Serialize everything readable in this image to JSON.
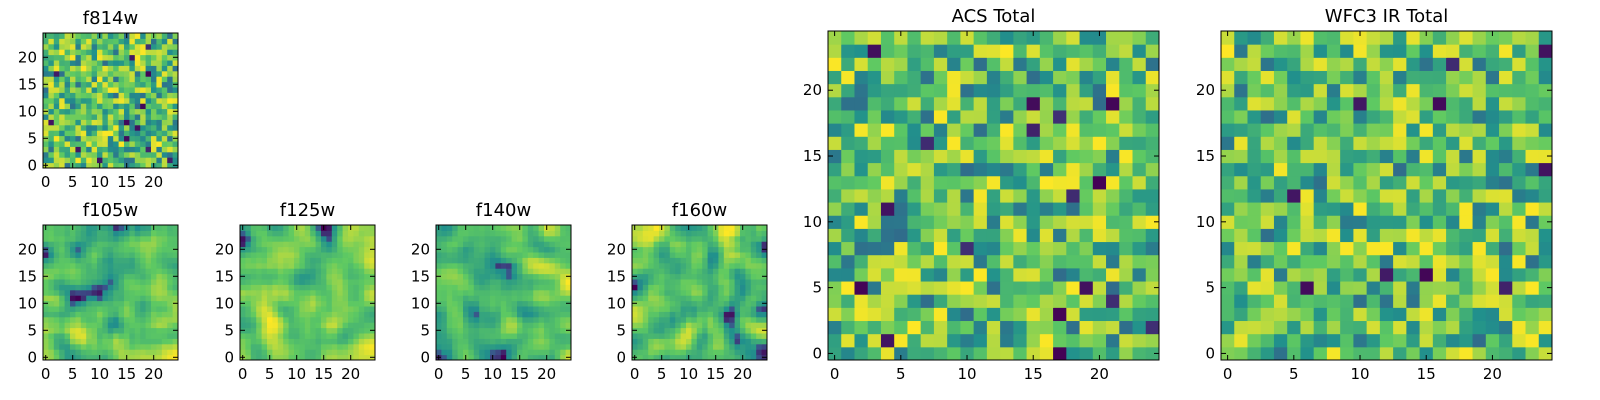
{
  "figure": {
    "type": "heatmap",
    "colormap": "viridis",
    "colormap_colors": [
      "#440154",
      "#3b528b",
      "#21918c",
      "#5ec962",
      "#fde725"
    ]
  },
  "chart_data": [
    {
      "type": "heatmap",
      "title": "f814w",
      "grid_size": 25,
      "pattern": "fine noise",
      "xlim": [
        -0.5,
        24.5
      ],
      "ylim": [
        -0.5,
        24.5
      ],
      "xticks": [
        0,
        5,
        10,
        15,
        20
      ],
      "yticks": [
        0,
        5,
        10,
        15,
        20
      ]
    },
    {
      "type": "heatmap",
      "title": "f105w",
      "grid_size": 25,
      "pattern": "smoothed noise",
      "xlim": [
        -0.5,
        24.5
      ],
      "ylim": [
        -0.5,
        24.5
      ],
      "xticks": [
        0,
        5,
        10,
        15,
        20
      ],
      "yticks": [
        0,
        5,
        10,
        15,
        20
      ]
    },
    {
      "type": "heatmap",
      "title": "f125w",
      "grid_size": 25,
      "pattern": "smoothed noise",
      "xlim": [
        -0.5,
        24.5
      ],
      "ylim": [
        -0.5,
        24.5
      ],
      "xticks": [
        0,
        5,
        10,
        15,
        20
      ],
      "yticks": [
        0,
        5,
        10,
        15,
        20
      ]
    },
    {
      "type": "heatmap",
      "title": "f140w",
      "grid_size": 25,
      "pattern": "smoothed noise",
      "xlim": [
        -0.5,
        24.5
      ],
      "ylim": [
        -0.5,
        24.5
      ],
      "xticks": [
        0,
        5,
        10,
        15,
        20
      ],
      "yticks": [
        0,
        5,
        10,
        15,
        20
      ]
    },
    {
      "type": "heatmap",
      "title": "f160w",
      "grid_size": 25,
      "pattern": "smoothed noise",
      "xlim": [
        -0.5,
        24.5
      ],
      "ylim": [
        -0.5,
        24.5
      ],
      "xticks": [
        0,
        5,
        10,
        15,
        20
      ],
      "yticks": [
        0,
        5,
        10,
        15,
        20
      ]
    },
    {
      "type": "heatmap",
      "title": "ACS Total",
      "grid_size": 25,
      "pattern": "fine noise",
      "xlim": [
        -0.5,
        24.5
      ],
      "ylim": [
        -0.5,
        24.5
      ],
      "xticks": [
        0,
        5,
        10,
        15,
        20
      ],
      "yticks": [
        0,
        5,
        10,
        15,
        20
      ]
    },
    {
      "type": "heatmap",
      "title": "WFC3 IR Total",
      "grid_size": 25,
      "pattern": "fine noise",
      "xlim": [
        -0.5,
        24.5
      ],
      "ylim": [
        -0.5,
        24.5
      ],
      "xticks": [
        0,
        5,
        10,
        15,
        20
      ],
      "yticks": [
        0,
        5,
        10,
        15,
        20
      ]
    }
  ]
}
